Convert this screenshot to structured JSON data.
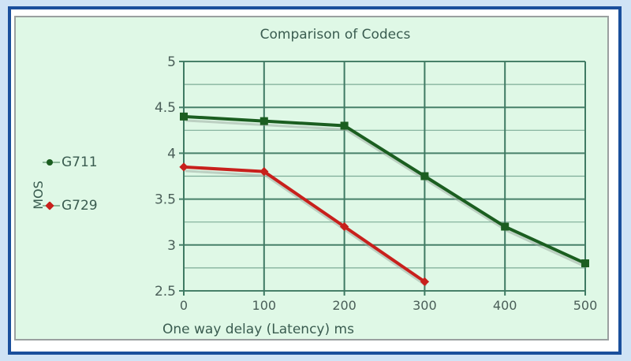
{
  "chart_data": {
    "type": "line",
    "title": "Comparison of Codecs",
    "xlabel": "One way delay (Latency) ms",
    "ylabel": "MOS",
    "x": [
      0,
      100,
      200,
      300,
      400,
      500
    ],
    "xticks": [
      "0",
      "100",
      "200",
      "300",
      "400",
      "500"
    ],
    "yticks": [
      "2.5",
      "3",
      "3.5",
      "4",
      "4.5",
      "5"
    ],
    "ylim": [
      2.5,
      5
    ],
    "xlim": [
      0,
      500
    ],
    "grid": true,
    "legend_position": "left",
    "series": [
      {
        "name": "G711",
        "color": "#1b5e20",
        "x": [
          0,
          100,
          200,
          300,
          400,
          500
        ],
        "values": [
          4.4,
          4.35,
          4.3,
          3.75,
          3.2,
          2.8
        ]
      },
      {
        "name": "G729",
        "color": "#c8201c",
        "x": [
          0,
          100,
          200,
          300
        ],
        "values": [
          3.85,
          3.8,
          3.2,
          2.6
        ]
      }
    ]
  },
  "legend": {
    "g711": "G711",
    "g729": "G729"
  }
}
